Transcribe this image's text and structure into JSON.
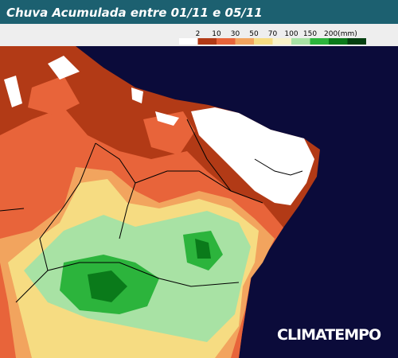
{
  "header": {
    "title": "Chuva Acumulada entre 01/11 e 05/11"
  },
  "legend": {
    "labels": [
      "2",
      "10",
      "30",
      "50",
      "70",
      "100",
      "150",
      "200(mm)"
    ],
    "colors": [
      "#ffffff",
      "#b23a16",
      "#e8643a",
      "#f2a45e",
      "#f6dc82",
      "#f8f2c8",
      "#a8e2a4",
      "#2cb43c",
      "#0a7a1a",
      "#044010"
    ]
  },
  "brand": "CLIMATEMPO"
}
